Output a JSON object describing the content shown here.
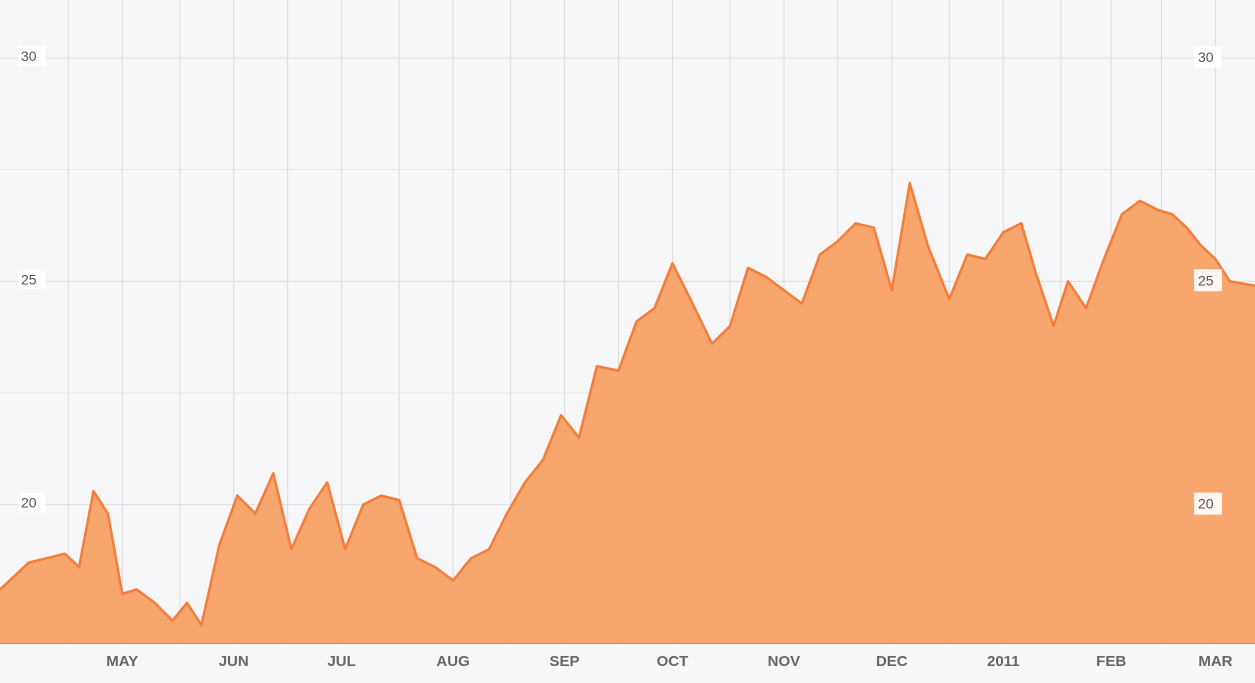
{
  "chart_data": {
    "type": "area",
    "title": "",
    "xlabel": "",
    "ylabel": "",
    "ylim": [
      16.9,
      31.3
    ],
    "x_tick_labels": [
      "MAY",
      "JUN",
      "JUL",
      "AUG",
      "SEP",
      "OCT",
      "NOV",
      "DEC",
      "2011",
      "FEB",
      "MAR"
    ],
    "y_ticks": [
      20,
      25,
      30
    ],
    "y_tick_labels": [
      "20",
      "25",
      "30"
    ],
    "grid": true,
    "legend": "none",
    "colors": {
      "line": "#f47d3a",
      "fill": "#f7a266",
      "grid": "#dcdcdc",
      "background": "#f7f7f9"
    },
    "x": [
      "2010-04-15",
      "2010-04-20",
      "2010-04-25",
      "2010-04-30",
      "2010-05-04",
      "2010-05-08",
      "2010-05-12",
      "2010-05-16",
      "2010-05-20",
      "2010-05-25",
      "2010-05-30",
      "2010-06-03",
      "2010-06-07",
      "2010-06-12",
      "2010-06-17",
      "2010-06-22",
      "2010-06-27",
      "2010-07-02",
      "2010-07-07",
      "2010-07-12",
      "2010-07-17",
      "2010-07-22",
      "2010-07-27",
      "2010-08-01",
      "2010-08-06",
      "2010-08-11",
      "2010-08-16",
      "2010-08-21",
      "2010-08-26",
      "2010-08-31",
      "2010-09-05",
      "2010-09-10",
      "2010-09-15",
      "2010-09-20",
      "2010-09-25",
      "2010-10-01",
      "2010-10-06",
      "2010-10-11",
      "2010-10-16",
      "2010-10-21",
      "2010-10-27",
      "2010-11-01",
      "2010-11-06",
      "2010-11-11",
      "2010-11-16",
      "2010-11-21",
      "2010-11-26",
      "2010-12-01",
      "2010-12-06",
      "2010-12-11",
      "2010-12-16",
      "2010-12-21",
      "2010-12-26",
      "2011-01-01",
      "2011-01-06",
      "2011-01-11",
      "2011-01-16",
      "2011-01-21",
      "2011-01-25",
      "2011-01-30",
      "2011-02-03",
      "2011-02-08",
      "2011-02-13",
      "2011-02-18",
      "2011-02-23",
      "2011-02-28",
      "2011-03-04",
      "2011-03-08",
      "2011-03-12",
      "2011-03-16",
      "2011-03-20",
      "2011-03-24"
    ],
    "values": [
      18.1,
      18.7,
      18.8,
      18.9,
      18.6,
      20.3,
      19.8,
      18.0,
      18.1,
      17.8,
      17.4,
      17.8,
      17.3,
      19.1,
      20.2,
      19.8,
      20.7,
      19.0,
      19.9,
      20.5,
      19.0,
      20.0,
      20.2,
      20.1,
      18.8,
      18.6,
      18.3,
      18.8,
      19.0,
      19.8,
      20.5,
      21.0,
      22.0,
      21.5,
      23.1,
      23.0,
      24.1,
      24.4,
      25.4,
      24.6,
      23.6,
      24.0,
      25.3,
      25.1,
      24.8,
      24.5,
      25.6,
      25.9,
      26.3,
      26.2,
      24.8,
      27.2,
      25.8,
      24.6,
      25.6,
      25.5,
      26.1,
      26.3,
      25.2,
      24.0,
      25.0,
      24.4,
      25.5,
      26.5,
      26.8,
      26.6,
      26.5,
      26.2,
      25.8,
      25.5,
      25.0,
      24.9
    ]
  }
}
